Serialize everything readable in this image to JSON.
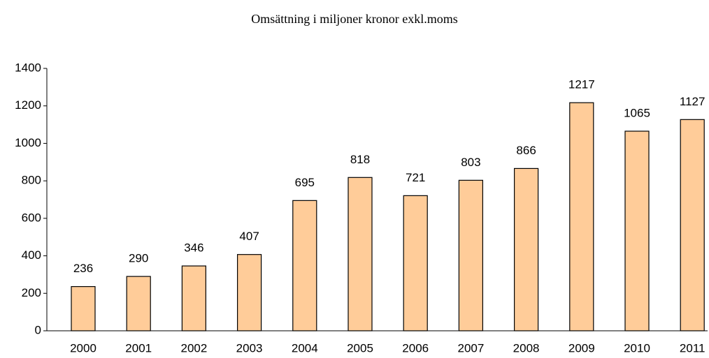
{
  "chart_data": {
    "type": "bar",
    "title": "Omsättning i miljoner kronor exkl.moms",
    "categories": [
      "2000",
      "2001",
      "2002",
      "2003",
      "2004",
      "2005",
      "2006",
      "2007",
      "2008",
      "2009",
      "2010",
      "2011"
    ],
    "values": [
      236,
      290,
      346,
      407,
      695,
      818,
      721,
      803,
      866,
      1217,
      1065,
      1127
    ],
    "color": "#ffcc99",
    "ylim": [
      0,
      1400
    ],
    "yticks": [
      0,
      200,
      400,
      600,
      800,
      1000,
      1200,
      1400
    ],
    "grid": false
  }
}
